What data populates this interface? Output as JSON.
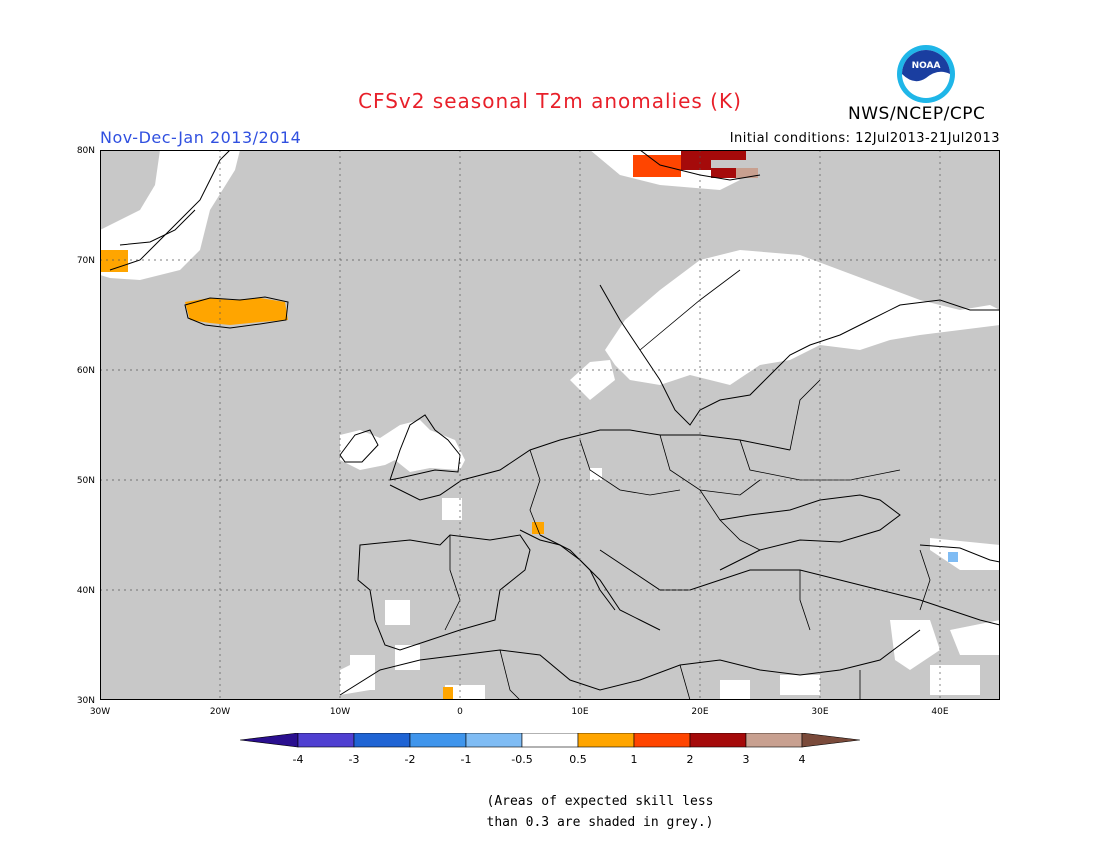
{
  "title": "CFSv2 seasonal T2m anomalies (K)",
  "organization": "NWS/NCEP/CPC",
  "logo_text": "NOAA",
  "period": "Nov-Dec-Jan 2013/2014",
  "initial_conditions": "Initial conditions: 12Jul2013-21Jul2013",
  "map": {
    "lon_range": [
      -30,
      45
    ],
    "lat_range": [
      30,
      80
    ],
    "lon_ticks": [
      "30W",
      "20W",
      "10W",
      "0",
      "10E",
      "20E",
      "30E",
      "40E"
    ],
    "lat_ticks": [
      "80N",
      "70N",
      "60N",
      "50N",
      "40N",
      "30N"
    ],
    "background_color": "#c8c8c8",
    "ocean_color": "#c8c8c8"
  },
  "colorbar": {
    "boundaries": [
      "-4",
      "-3",
      "-2",
      "-1",
      "-0.5",
      "0.5",
      "1",
      "2",
      "3",
      "4"
    ],
    "colors": [
      "#2a0f8f",
      "#4f3fd1",
      "#1f64d4",
      "#3f95ec",
      "#7fbcf4",
      "#ffffff",
      "#ffa500",
      "#ff4500",
      "#a50a0a",
      "#c8a090",
      "#7a4a3a"
    ]
  },
  "note": {
    "line1": "(Areas of expected skill less",
    "line2": "than 0.3 are shaded in grey.)"
  }
}
